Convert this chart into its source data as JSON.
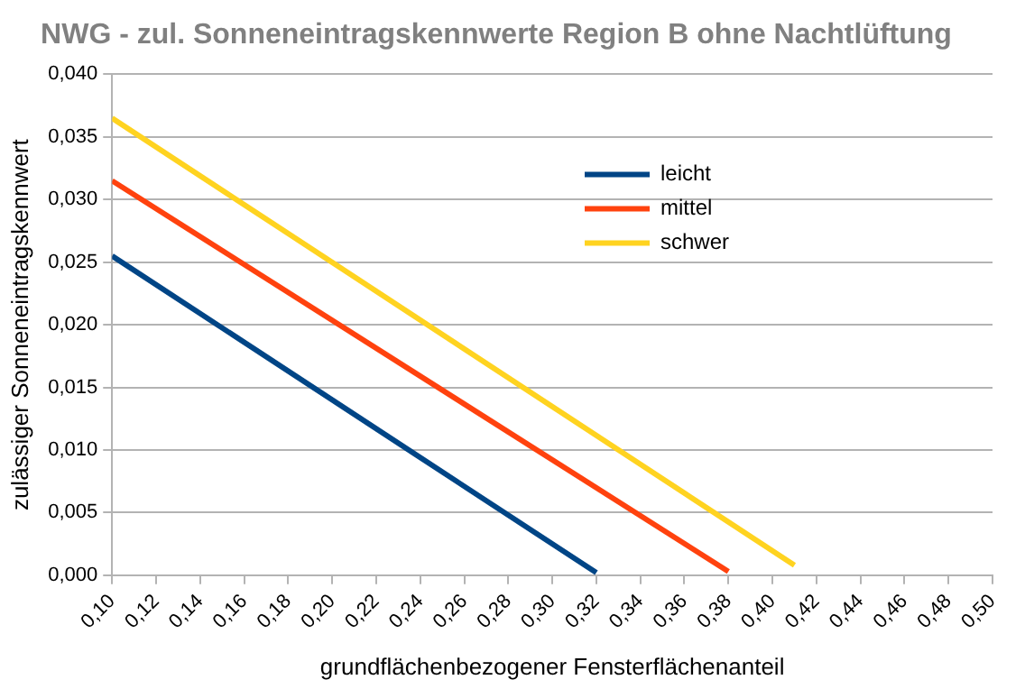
{
  "chart_data": {
    "type": "line",
    "title": "NWG - zul. Sonneneintragskennwerte Region B ohne Nachtlüftung",
    "xlabel": "grundflächenbezogener Fensterflächenanteil",
    "ylabel": "zulässiger Sonneneintragskennwert",
    "series": [
      {
        "name": "leicht",
        "color": "#004586",
        "x": [
          0.1,
          0.32
        ],
        "values": [
          0.0255,
          0.0002
        ]
      },
      {
        "name": "mittel",
        "color": "#ff420e",
        "x": [
          0.1,
          0.38
        ],
        "values": [
          0.0315,
          0.0003
        ]
      },
      {
        "name": "schwer",
        "color": "#ffd320",
        "x": [
          0.1,
          0.41
        ],
        "values": [
          0.0365,
          0.0008
        ]
      }
    ],
    "xlim": [
      0.1,
      0.5
    ],
    "xticks": [
      {
        "value": 0.1,
        "label": "0,10"
      },
      {
        "value": 0.12,
        "label": "0,12"
      },
      {
        "value": 0.14,
        "label": "0,14"
      },
      {
        "value": 0.16,
        "label": "0,16"
      },
      {
        "value": 0.18,
        "label": "0,18"
      },
      {
        "value": 0.2,
        "label": "0,20"
      },
      {
        "value": 0.22,
        "label": "0,22"
      },
      {
        "value": 0.24,
        "label": "0,24"
      },
      {
        "value": 0.26,
        "label": "0,26"
      },
      {
        "value": 0.28,
        "label": "0,28"
      },
      {
        "value": 0.3,
        "label": "0,30"
      },
      {
        "value": 0.32,
        "label": "0,32"
      },
      {
        "value": 0.34,
        "label": "0,34"
      },
      {
        "value": 0.36,
        "label": "0,36"
      },
      {
        "value": 0.38,
        "label": "0,38"
      },
      {
        "value": 0.4,
        "label": "0,40"
      },
      {
        "value": 0.42,
        "label": "0,42"
      },
      {
        "value": 0.44,
        "label": "0,44"
      },
      {
        "value": 0.46,
        "label": "0,46"
      },
      {
        "value": 0.48,
        "label": "0,48"
      },
      {
        "value": 0.5,
        "label": "0,50"
      }
    ],
    "ylim": [
      0,
      0.04
    ],
    "yticks": [
      {
        "value": 0,
        "label": "0,000"
      },
      {
        "value": 0.005,
        "label": "0,005"
      },
      {
        "value": 0.01,
        "label": "0,010"
      },
      {
        "value": 0.015,
        "label": "0,015"
      },
      {
        "value": 0.02,
        "label": "0,020"
      },
      {
        "value": 0.025,
        "label": "0,025"
      },
      {
        "value": 0.03,
        "label": "0,030"
      },
      {
        "value": 0.035,
        "label": "0,035"
      },
      {
        "value": 0.04,
        "label": "0,040"
      }
    ],
    "grid": "y",
    "legend": "top right",
    "marker": "none",
    "line_style": "solid"
  }
}
